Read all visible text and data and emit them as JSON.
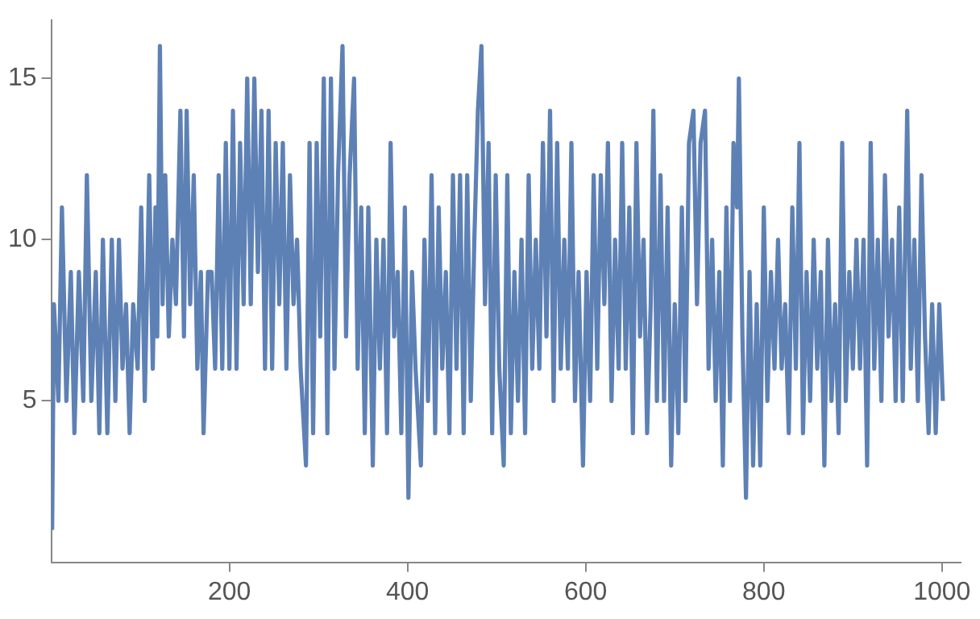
{
  "chart_data": {
    "type": "line",
    "xlim": [
      0,
      1021
    ],
    "ylim": [
      0,
      16.8
    ],
    "xticks": [
      200,
      400,
      600,
      800,
      1000
    ],
    "yticks": [
      5,
      10,
      15
    ],
    "grid": false,
    "legend": false,
    "marker": "none",
    "line_style": "solid",
    "series": [
      {
        "color": "#5e81b5",
        "x": [
          1,
          3,
          8,
          12,
          17,
          22,
          26,
          31,
          36,
          40,
          45,
          50,
          54,
          58,
          63,
          68,
          72,
          76,
          80,
          84,
          88,
          92,
          97,
          101,
          105,
          110,
          114,
          117,
          119,
          122,
          125,
          128,
          132,
          136,
          140,
          145,
          149,
          152,
          156,
          160,
          164,
          168,
          171,
          176,
          180,
          184,
          188,
          192,
          196,
          200,
          204,
          208,
          212,
          216,
          220,
          224,
          228,
          232,
          236,
          240,
          244,
          248,
          252,
          256,
          260,
          264,
          268,
          272,
          276,
          280,
          286,
          290,
          294,
          298,
          302,
          306,
          310,
          314,
          318,
          322,
          327,
          331,
          335,
          340,
          344,
          348,
          352,
          356,
          361,
          365,
          369,
          373,
          377,
          381,
          385,
          389,
          393,
          397,
          401,
          405,
          409,
          415,
          419,
          423,
          427,
          431,
          435,
          439,
          443,
          447,
          451,
          455,
          459,
          463,
          467,
          471,
          475,
          479,
          483,
          487,
          491,
          495,
          499,
          503,
          508,
          512,
          516,
          520,
          524,
          528,
          532,
          536,
          540,
          544,
          548,
          552,
          556,
          560,
          564,
          568,
          572,
          576,
          580,
          584,
          588,
          592,
          597,
          601,
          605,
          609,
          613,
          617,
          621,
          625,
          629,
          633,
          637,
          641,
          645,
          649,
          653,
          657,
          661,
          665,
          669,
          673,
          676,
          680,
          684,
          688,
          692,
          696,
          700,
          704,
          708,
          712,
          716,
          721,
          725,
          729,
          734,
          738,
          742,
          746,
          750,
          754,
          758,
          762,
          766,
          770,
          772,
          776,
          780,
          784,
          788,
          792,
          796,
          800,
          804,
          808,
          812,
          816,
          820,
          824,
          828,
          832,
          836,
          840,
          844,
          848,
          852,
          856,
          860,
          864,
          868,
          872,
          876,
          880,
          884,
          888,
          892,
          896,
          900,
          904,
          908,
          912,
          916,
          920,
          924,
          928,
          932,
          936,
          940,
          944,
          948,
          952,
          956,
          961,
          965,
          969,
          973,
          977,
          981,
          985,
          989,
          993,
          997,
          1001
        ],
        "values": [
          1,
          8,
          5,
          11,
          5,
          9,
          4,
          9,
          5,
          12,
          5,
          9,
          4,
          10,
          4,
          10,
          5,
          10,
          6,
          8,
          4,
          8,
          6,
          11,
          5,
          12,
          6,
          11,
          7,
          16,
          8,
          12,
          7,
          10,
          8,
          14,
          7,
          14,
          8,
          12,
          6,
          9,
          4,
          9,
          9,
          6,
          12,
          6,
          13,
          6,
          14,
          6,
          13,
          8,
          15,
          8,
          15,
          9,
          14,
          6,
          14,
          6,
          13,
          8,
          13,
          6,
          12,
          8,
          10,
          6,
          3,
          13,
          4,
          13,
          7,
          15,
          4,
          15,
          6,
          12,
          16,
          7,
          12,
          15,
          6,
          11,
          4,
          11,
          3,
          10,
          6,
          10,
          4,
          13,
          7,
          9,
          4,
          11,
          2,
          9,
          6,
          3,
          10,
          5,
          12,
          4,
          11,
          6,
          9,
          4,
          12,
          6,
          12,
          4,
          12,
          5,
          10,
          14,
          16,
          8,
          13,
          4,
          12,
          6,
          3,
          12,
          4,
          9,
          5,
          10,
          4,
          12,
          6,
          10,
          6,
          13,
          7,
          14,
          5,
          13,
          6,
          10,
          6,
          13,
          5,
          9,
          3,
          9,
          5,
          12,
          6,
          12,
          8,
          13,
          5,
          10,
          6,
          13,
          6,
          11,
          4,
          13,
          7,
          10,
          4,
          8,
          14,
          5,
          12,
          5,
          11,
          3,
          8,
          4,
          11,
          5,
          13,
          14,
          8,
          13,
          14,
          6,
          10,
          5,
          9,
          3,
          11,
          5,
          13,
          11,
          15,
          7,
          2,
          9,
          3,
          8,
          3,
          11,
          5,
          9,
          6,
          10,
          6,
          8,
          4,
          11,
          6,
          13,
          4,
          9,
          5,
          10,
          6,
          9,
          3,
          10,
          5,
          8,
          4,
          13,
          5,
          9,
          6,
          10,
          6,
          10,
          3,
          13,
          6,
          10,
          5,
          12,
          7,
          10,
          5,
          11,
          5,
          14,
          6,
          10,
          5,
          12,
          7,
          4,
          8,
          4,
          8,
          5
        ]
      }
    ]
  }
}
